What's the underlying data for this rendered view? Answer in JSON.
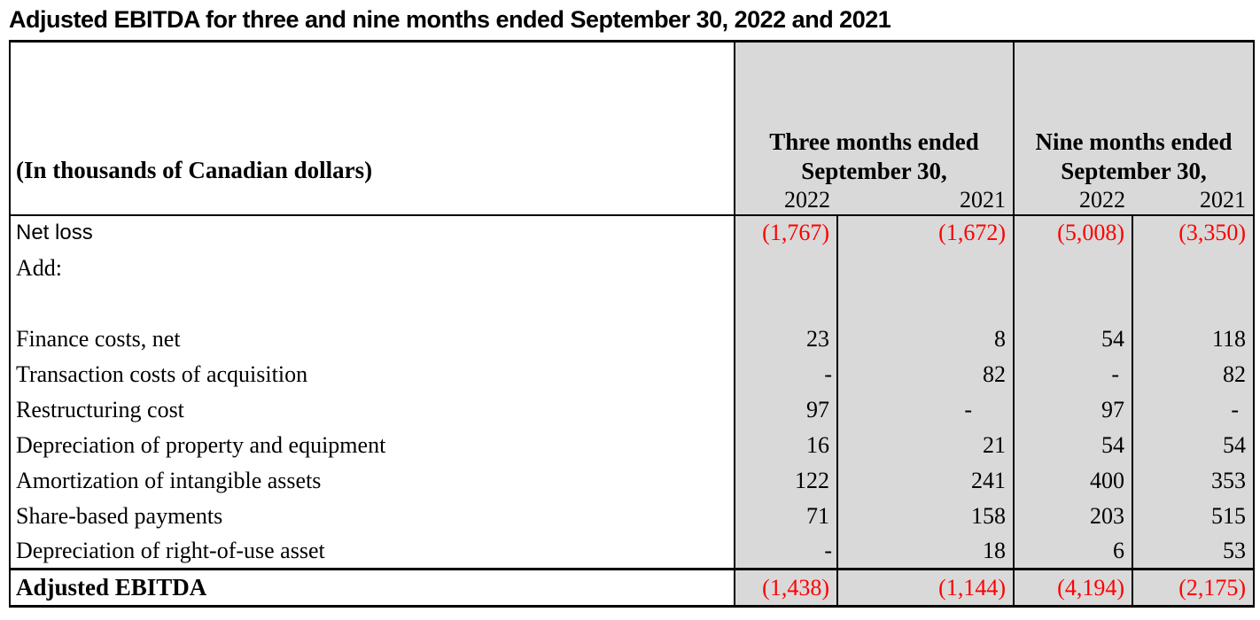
{
  "title": "Adjusted EBITDA for three and nine months ended September 30, 2022 and 2021",
  "table": {
    "corner_label": "(In thousands of Canadian dollars)",
    "groups": [
      {
        "line1": "Three months ended",
        "line2": "September 30,",
        "years": [
          "2022",
          "2021"
        ]
      },
      {
        "line1": "Nine months ended",
        "line2": "September 30,",
        "years": [
          "2022",
          "2021"
        ]
      }
    ],
    "rows": [
      {
        "label": "Net loss",
        "values": [
          "(1,767)",
          "(1,672)",
          "(5,008)",
          "(3,350)"
        ],
        "red": true,
        "sans_label": true
      },
      {
        "label": "Add:",
        "values": [
          "",
          "",
          "",
          ""
        ]
      },
      {
        "label": "",
        "values": [
          "",
          "",
          "",
          ""
        ],
        "spacer": true
      },
      {
        "label": "Finance costs, net",
        "values": [
          "23",
          "8",
          "54",
          "118"
        ]
      },
      {
        "label": "Transaction costs of acquisition",
        "values": [
          "-",
          "82",
          "-",
          "82"
        ]
      },
      {
        "label": "Restructuring cost",
        "values": [
          "97",
          "-",
          "97",
          "-"
        ]
      },
      {
        "label": "Depreciation of property and equipment",
        "values": [
          "16",
          "21",
          "54",
          "54"
        ]
      },
      {
        "label": "Amortization of intangible assets",
        "values": [
          "122",
          "241",
          "400",
          "353"
        ]
      },
      {
        "label": "Share-based payments",
        "values": [
          "71",
          "158",
          "203",
          "515"
        ]
      },
      {
        "label": "Depreciation of right-of-use asset",
        "values": [
          "-",
          "18",
          "6",
          "53"
        ]
      },
      {
        "label": "Adjusted EBITDA",
        "values": [
          "(1,438)",
          "(1,144)",
          "(4,194)",
          "(2,175)"
        ],
        "red": true,
        "bold_label": true,
        "total": true
      }
    ],
    "colors": {
      "negative_value": "#FF0000",
      "column_fill": "#D9D9D9",
      "border": "#000000"
    }
  }
}
